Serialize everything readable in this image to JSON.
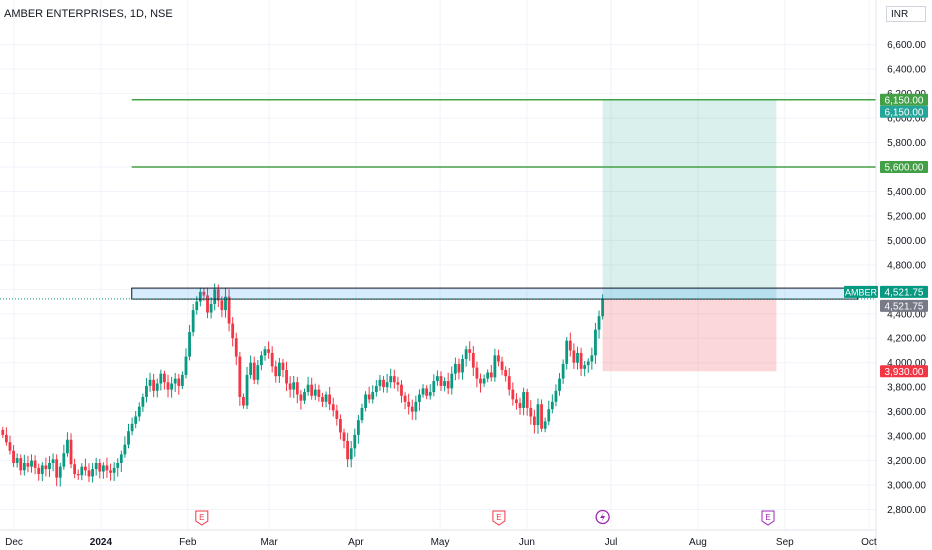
{
  "header": {
    "title": "AMBER ENTERPRISES, 1D, NSE",
    "currency": "INR"
  },
  "chart_data": {
    "type": "candlestick",
    "symbol": "AMBER",
    "interval": "1D",
    "ylim": [
      2700,
      6800
    ],
    "y_ticks": [
      "6,600.00",
      "6,400.00",
      "6,200.00",
      "6,000.00",
      "5,800.00",
      "5,600.00",
      "5,400.00",
      "5,200.00",
      "5,000.00",
      "4,800.00",
      "4,600.00",
      "4,400.00",
      "4,200.00",
      "4,000.00",
      "3,800.00",
      "3,600.00",
      "3,400.00",
      "3,200.00",
      "3,000.00",
      "2,800.00"
    ],
    "y_tick_values": [
      6600,
      6400,
      6200,
      6000,
      5800,
      5600,
      5400,
      5200,
      5000,
      4800,
      4600,
      4400,
      4200,
      4000,
      3800,
      3600,
      3400,
      3200,
      3000,
      2800
    ],
    "x_labels": [
      {
        "text": "Dec",
        "date": "2023-12-01",
        "bold": false
      },
      {
        "text": "2024",
        "date": "2024-01-01",
        "bold": true
      },
      {
        "text": "Feb",
        "date": "2024-02-01",
        "bold": false
      },
      {
        "text": "Mar",
        "date": "2024-03-01",
        "bold": false
      },
      {
        "text": "Apr",
        "date": "2024-04-01",
        "bold": false
      },
      {
        "text": "May",
        "date": "2024-05-01",
        "bold": false
      },
      {
        "text": "Jun",
        "date": "2024-06-01",
        "bold": false
      },
      {
        "text": "Jul",
        "date": "2024-07-01",
        "bold": false
      },
      {
        "text": "Aug",
        "date": "2024-08-01",
        "bold": false
      },
      {
        "text": "Sep",
        "date": "2024-09-01",
        "bold": false
      },
      {
        "text": "Oct",
        "date": "2024-10-01",
        "bold": false
      }
    ],
    "close_path": [
      3410,
      3350,
      3280,
      3180,
      3220,
      3120,
      3180,
      3150,
      3200,
      3140,
      3090,
      3160,
      3130,
      3180,
      3210,
      3060,
      3150,
      3260,
      3370,
      3170,
      3090,
      3080,
      3150,
      3120,
      3070,
      3130,
      3180,
      3110,
      3160,
      3120,
      3100,
      3140,
      3180,
      3250,
      3330,
      3440,
      3500,
      3560,
      3640,
      3720,
      3810,
      3860,
      3770,
      3830,
      3910,
      3840,
      3780,
      3830,
      3870,
      3810,
      3900,
      4050,
      4250,
      4430,
      4500,
      4580,
      4550,
      4410,
      4480,
      4600,
      4510,
      4430,
      4540,
      4320,
      4200,
      4050,
      3720,
      3650,
      3900,
      4000,
      3860,
      3980,
      4060,
      4110,
      4080,
      3970,
      3890,
      4000,
      3940,
      3830,
      3780,
      3840,
      3740,
      3690,
      3760,
      3820,
      3730,
      3780,
      3720,
      3680,
      3740,
      3660,
      3610,
      3540,
      3430,
      3360,
      3210,
      3300,
      3410,
      3530,
      3630,
      3740,
      3700,
      3760,
      3810,
      3860,
      3800,
      3840,
      3890,
      3840,
      3820,
      3730,
      3680,
      3640,
      3600,
      3680,
      3740,
      3790,
      3730,
      3760,
      3850,
      3890,
      3810,
      3850,
      3790,
      3910,
      3990,
      3920,
      4030,
      4110,
      4080,
      3960,
      3870,
      3830,
      3870,
      3920,
      3880,
      4060,
      4010,
      3940,
      3890,
      3780,
      3700,
      3670,
      3630,
      3760,
      3630,
      3560,
      3490,
      3660,
      3460,
      3520,
      3620,
      3680,
      3770,
      3870,
      3990,
      4180,
      4100,
      4000,
      4080,
      3950,
      3980,
      4010,
      4060,
      4270,
      4380,
      4520
    ],
    "close_dates": [
      "2023-11-27",
      "2024-06-28"
    ],
    "projected_close": 4521.75,
    "levels": [
      {
        "value": 6150,
        "label": "6,150.00",
        "color": "#43a047",
        "from_date": "2024-01-12"
      },
      {
        "value": 5600,
        "label": "5,600.00",
        "color": "#43a047",
        "from_date": "2024-01-12"
      }
    ],
    "zone": {
      "top": 4610,
      "bottom": 4520,
      "from_date": "2024-01-12",
      "to_date": "2024-09-27"
    },
    "position": {
      "entry": 4521.75,
      "target": 6150,
      "stop": 3930,
      "from_date": "2024-06-28",
      "to_date": "2024-08-29"
    },
    "price_labels": [
      {
        "value": 6150,
        "text": "6,150.00",
        "bg": "#43a047"
      },
      {
        "value": 6150,
        "text": "6,150.00",
        "bg": "#26a69a",
        "offset": 12
      },
      {
        "value": 5600,
        "text": "5,600.00",
        "bg": "#43a047"
      },
      {
        "value": 4521.75,
        "text": "4,521.75",
        "bg": "#089981",
        "symbol": "AMBER",
        "offset": -7
      },
      {
        "value": 4521.75,
        "text": "4,521.75",
        "bg": "#787b86",
        "offset": 7
      },
      {
        "value": 3930,
        "text": "3,930.00",
        "bg": "#f23645"
      }
    ],
    "events": [
      {
        "date": "2024-02-06",
        "type": "E",
        "color": "#f23645"
      },
      {
        "date": "2024-05-22",
        "type": "E",
        "color": "#f23645"
      },
      {
        "date": "2024-06-28",
        "type": "split",
        "color": "#9c27b0"
      },
      {
        "date": "2024-08-26",
        "type": "E",
        "color": "#9c27b0"
      }
    ]
  }
}
